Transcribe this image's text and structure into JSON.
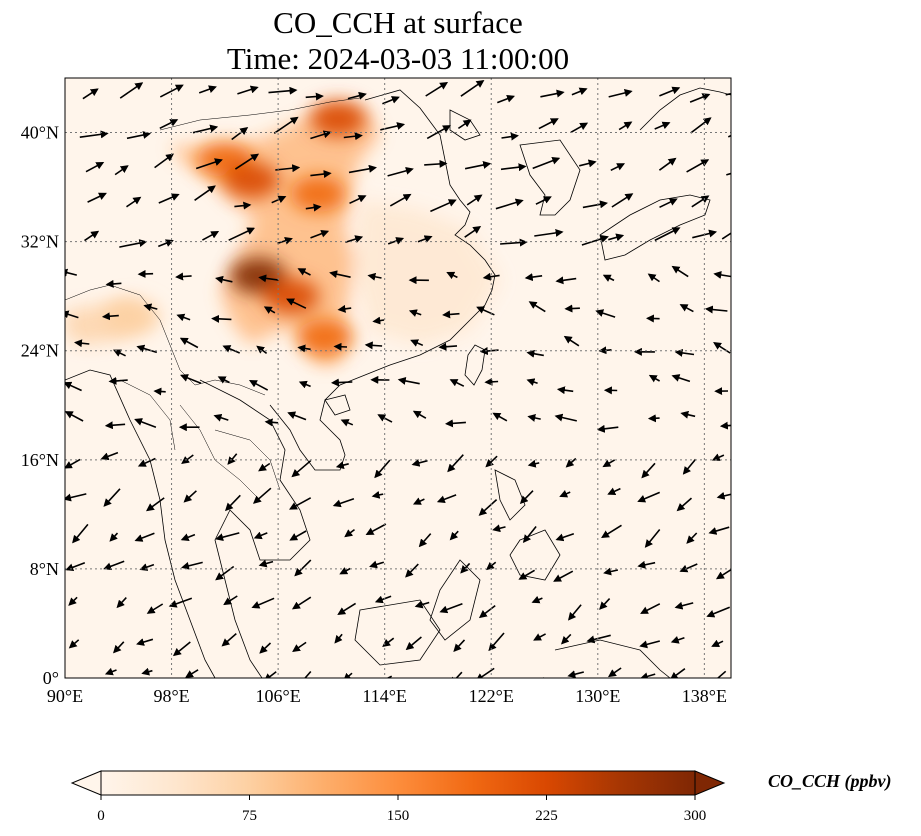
{
  "title_line1": "CO_CCH at surface",
  "title_line2": "Time: 2024-03-03 11:00:00",
  "map": {
    "lon_range": [
      90,
      140
    ],
    "lat_range": [
      0,
      44
    ],
    "lon_ticks": [
      {
        "value": 90,
        "label": "90°E"
      },
      {
        "value": 98,
        "label": "98°E"
      },
      {
        "value": 106,
        "label": "106°E"
      },
      {
        "value": 114,
        "label": "114°E"
      },
      {
        "value": 122,
        "label": "122°E"
      },
      {
        "value": 130,
        "label": "130°E"
      },
      {
        "value": 138,
        "label": "138°E"
      }
    ],
    "lat_ticks": [
      {
        "value": 0,
        "label": "0°"
      },
      {
        "value": 8,
        "label": "8°N"
      },
      {
        "value": 16,
        "label": "16°N"
      },
      {
        "value": 24,
        "label": "24°N"
      },
      {
        "value": 32,
        "label": "32°N"
      },
      {
        "value": 40,
        "label": "40°N"
      }
    ],
    "gridlines": true,
    "background_color": "#fff5eb",
    "wind_vectors": true
  },
  "colorbar": {
    "label": "CO_CCH (ppbv)",
    "colormap": "OrRd",
    "min": 0,
    "max": 300,
    "extend": "both",
    "ticks": [
      {
        "value": 0,
        "label": "0"
      },
      {
        "value": 75,
        "label": "75"
      },
      {
        "value": 150,
        "label": "150"
      },
      {
        "value": 225,
        "label": "225"
      },
      {
        "value": 300,
        "label": "300"
      }
    ],
    "stops": [
      "#fff5eb",
      "#fee6ce",
      "#fdd0a2",
      "#fdae6b",
      "#fd8d3c",
      "#f16913",
      "#d94801",
      "#a63603",
      "#7f2704"
    ]
  },
  "plumes": [
    {
      "lon": 102.0,
      "lat": 38.0,
      "value": 190
    },
    {
      "lon": 104.0,
      "lat": 36.5,
      "value": 230
    },
    {
      "lon": 110.5,
      "lat": 41.0,
      "value": 220
    },
    {
      "lon": 109.0,
      "lat": 35.5,
      "value": 200
    },
    {
      "lon": 104.5,
      "lat": 29.5,
      "value": 290
    },
    {
      "lon": 107.0,
      "lat": 28.0,
      "value": 210
    },
    {
      "lon": 109.5,
      "lat": 25.0,
      "value": 200
    },
    {
      "lon": 95.0,
      "lat": 26.5,
      "value": 80
    }
  ]
}
